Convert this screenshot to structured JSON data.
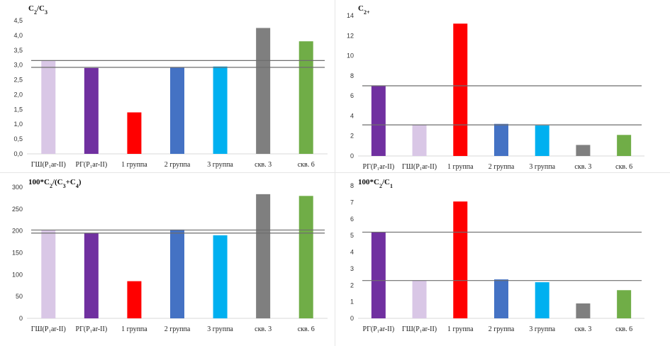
{
  "chart_data": [
    {
      "type": "bar",
      "title": "C",
      "title_parts": [
        {
          "t": "C"
        },
        {
          "t": "2",
          "sub": true
        },
        {
          "t": "/C"
        },
        {
          "t": "3",
          "sub": true
        }
      ],
      "categories": [
        "ГШ(P₁ar-II)",
        "РГ(P₁ar-II)",
        "1 группа",
        "2 группа",
        "3 группа",
        "скв. 3",
        "скв. 6"
      ],
      "values": [
        3.15,
        2.9,
        1.4,
        2.92,
        2.95,
        4.25,
        3.8
      ],
      "colors": [
        "#d9c7e6",
        "#7030a0",
        "#ff0000",
        "#4472c4",
        "#00b0f0",
        "#7f7f7f",
        "#70ad47"
      ],
      "ylim": [
        0,
        4.5
      ],
      "yticks": [
        "0,0",
        "0,5",
        "1,0",
        "1,5",
        "2,0",
        "2,5",
        "3,0",
        "3,5",
        "4,0",
        "4,5"
      ],
      "ref_lines": [
        3.15,
        2.92
      ],
      "xlabel": "",
      "ylabel": ""
    },
    {
      "type": "bar",
      "title": "C",
      "title_parts": [
        {
          "t": "C"
        },
        {
          "t": "2+",
          "sub": true
        }
      ],
      "categories": [
        "РГ(P₁ar-II)",
        "ГШ(P₁ar-II)",
        "1 группа",
        "2 группа",
        "3 группа",
        "скв. 3",
        "скв. 6"
      ],
      "values": [
        7.0,
        3.1,
        13.2,
        3.2,
        3.05,
        1.1,
        2.1
      ],
      "colors": [
        "#7030a0",
        "#d9c7e6",
        "#ff0000",
        "#4472c4",
        "#00b0f0",
        "#7f7f7f",
        "#70ad47"
      ],
      "ylim": [
        0,
        14
      ],
      "yticks": [
        "0",
        "2",
        "4",
        "6",
        "8",
        "10",
        "12",
        "14"
      ],
      "ref_lines": [
        7.0,
        3.1
      ],
      "xlabel": "",
      "ylabel": ""
    },
    {
      "type": "bar",
      "title": "100*C",
      "title_parts": [
        {
          "t": "100*C"
        },
        {
          "t": "2",
          "sub": true
        },
        {
          "t": "/(C"
        },
        {
          "t": "3",
          "sub": true
        },
        {
          "t": "+C"
        },
        {
          "t": "4",
          "sub": true
        },
        {
          "t": ")"
        }
      ],
      "categories": [
        "ГШ(P₁ar-II)",
        "РГ(P₁ar-II)",
        "1 группа",
        "2 группа",
        "3 группа",
        "скв. 3",
        "скв. 6"
      ],
      "values": [
        202,
        195,
        85,
        203,
        190,
        284,
        280
      ],
      "colors": [
        "#d9c7e6",
        "#7030a0",
        "#ff0000",
        "#4472c4",
        "#00b0f0",
        "#7f7f7f",
        "#70ad47"
      ],
      "ylim": [
        0,
        300
      ],
      "yticks": [
        "0",
        "50",
        "100",
        "150",
        "200",
        "250",
        "300"
      ],
      "ref_lines": [
        202,
        195
      ],
      "xlabel": "",
      "ylabel": ""
    },
    {
      "type": "bar",
      "title": "100*C",
      "title_parts": [
        {
          "t": "100*C"
        },
        {
          "t": "2",
          "sub": true
        },
        {
          "t": "/C"
        },
        {
          "t": "1",
          "sub": true
        }
      ],
      "categories": [
        "РГ(P₁ar-II)",
        "ГШ(P₁ar-II)",
        "1 группа",
        "2 группа",
        "3 группа",
        "скв. 3",
        "скв. 6"
      ],
      "values": [
        5.2,
        2.28,
        7.05,
        2.35,
        2.18,
        0.9,
        1.7
      ],
      "colors": [
        "#7030a0",
        "#d9c7e6",
        "#ff0000",
        "#4472c4",
        "#00b0f0",
        "#7f7f7f",
        "#70ad47"
      ],
      "ylim": [
        0,
        8
      ],
      "yticks": [
        "0",
        "1",
        "2",
        "3",
        "4",
        "5",
        "6",
        "7",
        "8"
      ],
      "ref_lines": [
        5.2,
        2.28
      ],
      "xlabel": "",
      "ylabel": ""
    }
  ]
}
